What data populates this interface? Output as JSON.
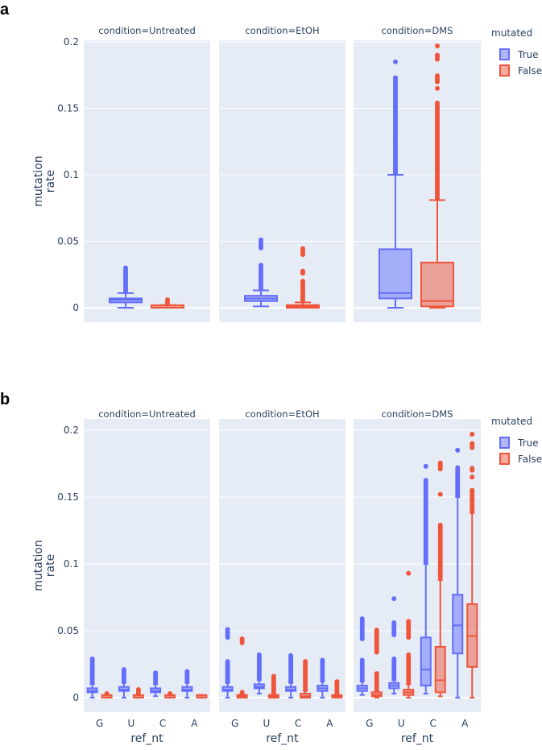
{
  "colors": {
    "True": "#636efa",
    "False": "#ef553b",
    "plot_bg": "#e5ecf6"
  },
  "chart_data": [
    {
      "type": "box",
      "panel_label": "a",
      "facet_titles": [
        "condition=Untreated",
        "condition=EtOH",
        "condition=DMS"
      ],
      "ylabel": [
        "mutation",
        "rate"
      ],
      "yticks": [
        0,
        0.05,
        0.1,
        0.15,
        0.2
      ],
      "ytick_labels": [
        "0",
        "0.05",
        "0.1",
        "0.15",
        "0.2"
      ],
      "ylim": [
        -0.006,
        0.205
      ],
      "categories": [
        ""
      ],
      "xlabel": "",
      "legend": {
        "title": "mutated",
        "entries": [
          "True",
          "False"
        ],
        "placement": "top-right"
      },
      "facets": [
        {
          "True": [
            {
              "lf": 0,
              "q1": 0.004,
              "med": 0.006,
              "q3": 0.007,
              "uf": 0.011,
              "out": [
                [
                  0.012,
                  0.03
                ]
              ]
            }
          ],
          "False": [
            {
              "lf": 0,
              "q1": 0,
              "med": 0,
              "q3": 0.001,
              "uf": 0.002,
              "out": [
                [
                  0.003,
                  0.007
                ]
              ]
            }
          ]
        },
        {
          "True": [
            {
              "lf": 0.001,
              "q1": 0.005,
              "med": 0.007,
              "q3": 0.009,
              "uf": 0.013,
              "out": [
                [
                  0.014,
                  0.033
                ],
                [
                  0.045,
                  0.052
                ]
              ]
            }
          ],
          "False": [
            {
              "lf": 0,
              "q1": 0,
              "med": 0.001,
              "q3": 0.002,
              "uf": 0.004,
              "out": [
                [
                  0.005,
                  0.02
                ],
                [
                  0.026,
                  0.028
                ],
                [
                  0.04,
                  0.045
                ]
              ]
            }
          ]
        },
        {
          "True": [
            {
              "lf": 0,
              "q1": 0.007,
              "med": 0.011,
              "q3": 0.044,
              "uf": 0.1,
              "out": [
                [
                  0.101,
                  0.174
                ],
                [
                  0.185,
                  0.185
                ]
              ]
            }
          ],
          "False": [
            {
              "lf": 0,
              "q1": 0.001,
              "med": 0.005,
              "q3": 0.034,
              "uf": 0.081,
              "out": [
                [
                  0.082,
                  0.155
                ],
                [
                  0.165,
                  0.165
                ],
                [
                  0.17,
                  0.175
                ],
                [
                  0.187,
                  0.191
                ],
                [
                  0.197,
                  0.197
                ]
              ]
            }
          ]
        }
      ]
    },
    {
      "type": "box",
      "panel_label": "b",
      "facet_titles": [
        "condition=Untreated",
        "condition=EtOH",
        "condition=DMS"
      ],
      "ylabel": [
        "mutation",
        "rate"
      ],
      "yticks": [
        0,
        0.05,
        0.1,
        0.15,
        0.2
      ],
      "ytick_labels": [
        "0",
        "0.05",
        "0.1",
        "0.15",
        "0.2"
      ],
      "ylim": [
        -0.006,
        0.205
      ],
      "categories": [
        "G",
        "U",
        "C",
        "A"
      ],
      "xlabel": "ref_nt",
      "legend": {
        "title": "mutated",
        "entries": [
          "True",
          "False"
        ],
        "placement": "top-right"
      },
      "facets": [
        {
          "True": [
            {
              "lf": 0,
              "q1": 0.004,
              "med": 0.005,
              "q3": 0.007,
              "uf": 0.01,
              "out": [
                [
                  0.011,
                  0.03
                ]
              ]
            },
            {
              "lf": 0,
              "q1": 0.005,
              "med": 0.006,
              "q3": 0.008,
              "uf": 0.011,
              "out": [
                [
                  0.012,
                  0.022
                ]
              ]
            },
            {
              "lf": 0.001,
              "q1": 0.004,
              "med": 0.005,
              "q3": 0.007,
              "uf": 0.01,
              "out": [
                [
                  0.011,
                  0.019
                ]
              ]
            },
            {
              "lf": 0,
              "q1": 0.005,
              "med": 0.006,
              "q3": 0.008,
              "uf": 0.011,
              "out": [
                [
                  0.012,
                  0.02
                ]
              ]
            }
          ],
          "False": [
            {
              "lf": 0,
              "q1": 0,
              "med": 0,
              "q3": 0.001,
              "uf": 0.002,
              "out": [
                [
                  0.003,
                  0.004
                ]
              ]
            },
            {
              "lf": 0,
              "q1": 0,
              "med": 0,
              "q3": 0.001,
              "uf": 0.002,
              "out": [
                [
                  0.003,
                  0.007
                ]
              ]
            },
            {
              "lf": 0,
              "q1": 0,
              "med": 0,
              "q3": 0.001,
              "uf": 0.002,
              "out": [
                [
                  0.003,
                  0.003
                ]
              ]
            },
            {
              "lf": 0,
              "q1": 0,
              "med": 0,
              "q3": 0.001,
              "uf": 0.002,
              "out": []
            }
          ]
        },
        {
          "True": [
            {
              "lf": 0,
              "q1": 0.005,
              "med": 0.006,
              "q3": 0.008,
              "uf": 0.011,
              "out": [
                [
                  0.012,
                  0.027
                ],
                [
                  0.045,
                  0.052
                ]
              ]
            },
            {
              "lf": 0.003,
              "q1": 0.007,
              "med": 0.008,
              "q3": 0.01,
              "uf": 0.013,
              "out": [
                [
                  0.014,
                  0.032
                ]
              ]
            },
            {
              "lf": 0,
              "q1": 0.005,
              "med": 0.006,
              "q3": 0.008,
              "uf": 0.011,
              "out": [
                [
                  0.012,
                  0.032
                ]
              ]
            },
            {
              "lf": 0,
              "q1": 0.005,
              "med": 0.007,
              "q3": 0.009,
              "uf": 0.012,
              "out": [
                [
                  0.013,
                  0.028
                ]
              ]
            }
          ],
          "False": [
            {
              "lf": 0,
              "q1": 0,
              "med": 0.001,
              "q3": 0.002,
              "uf": 0.003,
              "out": [
                [
                  0.004,
                  0.004
                ],
                [
                  0.041,
                  0.045
                ]
              ]
            },
            {
              "lf": 0,
              "q1": 0,
              "med": 0.001,
              "q3": 0.002,
              "uf": 0.003,
              "out": [
                [
                  0.004,
                  0.017
                ]
              ]
            },
            {
              "lf": 0,
              "q1": 0,
              "med": 0.001,
              "q3": 0.003,
              "uf": 0.005,
              "out": [
                [
                  0.006,
                  0.028
                ]
              ]
            },
            {
              "lf": 0,
              "q1": 0,
              "med": 0.001,
              "q3": 0.001,
              "uf": 0.002,
              "out": [
                [
                  0.003,
                  0.012
                ]
              ]
            }
          ]
        },
        {
          "True": [
            {
              "lf": 0.002,
              "q1": 0.005,
              "med": 0.007,
              "q3": 0.009,
              "uf": 0.012,
              "out": [
                [
                  0.013,
                  0.028
                ],
                [
                  0.044,
                  0.059
                ]
              ]
            },
            {
              "lf": 0.003,
              "q1": 0.007,
              "med": 0.009,
              "q3": 0.011,
              "uf": 0.013,
              "out": [
                [
                  0.014,
                  0.029
                ],
                [
                  0.047,
                  0.057
                ],
                [
                  0.074,
                  0.074
                ]
              ]
            },
            {
              "lf": 0.003,
              "q1": 0.009,
              "med": 0.021,
              "q3": 0.045,
              "uf": 0.1,
              "out": [
                [
                  0.101,
                  0.163
                ],
                [
                  0.173,
                  0.173
                ]
              ]
            },
            {
              "lf": 0,
              "q1": 0.033,
              "med": 0.054,
              "q3": 0.077,
              "uf": 0.15,
              "out": [
                [
                  0.151,
                  0.173
                ],
                [
                  0.185,
                  0.185
                ]
              ]
            }
          ],
          "False": [
            {
              "lf": 0,
              "q1": 0.001,
              "med": 0.002,
              "q3": 0.004,
              "uf": 0.005,
              "out": [
                [
                  0.006,
                  0.019
                ],
                [
                  0.034,
                  0.051
                ]
              ]
            },
            {
              "lf": 0,
              "q1": 0.002,
              "med": 0.004,
              "q3": 0.006,
              "uf": 0.01,
              "out": [
                [
                  0.011,
                  0.033
                ],
                [
                  0.045,
                  0.058
                ],
                [
                  0.093,
                  0.093
                ]
              ]
            },
            {
              "lf": 0.001,
              "q1": 0.004,
              "med": 0.013,
              "q3": 0.038,
              "uf": 0.088,
              "out": [
                [
                  0.09,
                  0.13
                ],
                [
                  0.152,
                  0.152
                ],
                [
                  0.171,
                  0.176
                ]
              ]
            },
            {
              "lf": 0,
              "q1": 0.023,
              "med": 0.046,
              "q3": 0.07,
              "uf": 0.138,
              "out": [
                [
                  0.14,
                  0.156
                ],
                [
                  0.165,
                  0.165
                ],
                [
                  0.17,
                  0.172
                ],
                [
                  0.187,
                  0.191
                ],
                [
                  0.197,
                  0.197
                ]
              ]
            }
          ]
        }
      ]
    }
  ]
}
